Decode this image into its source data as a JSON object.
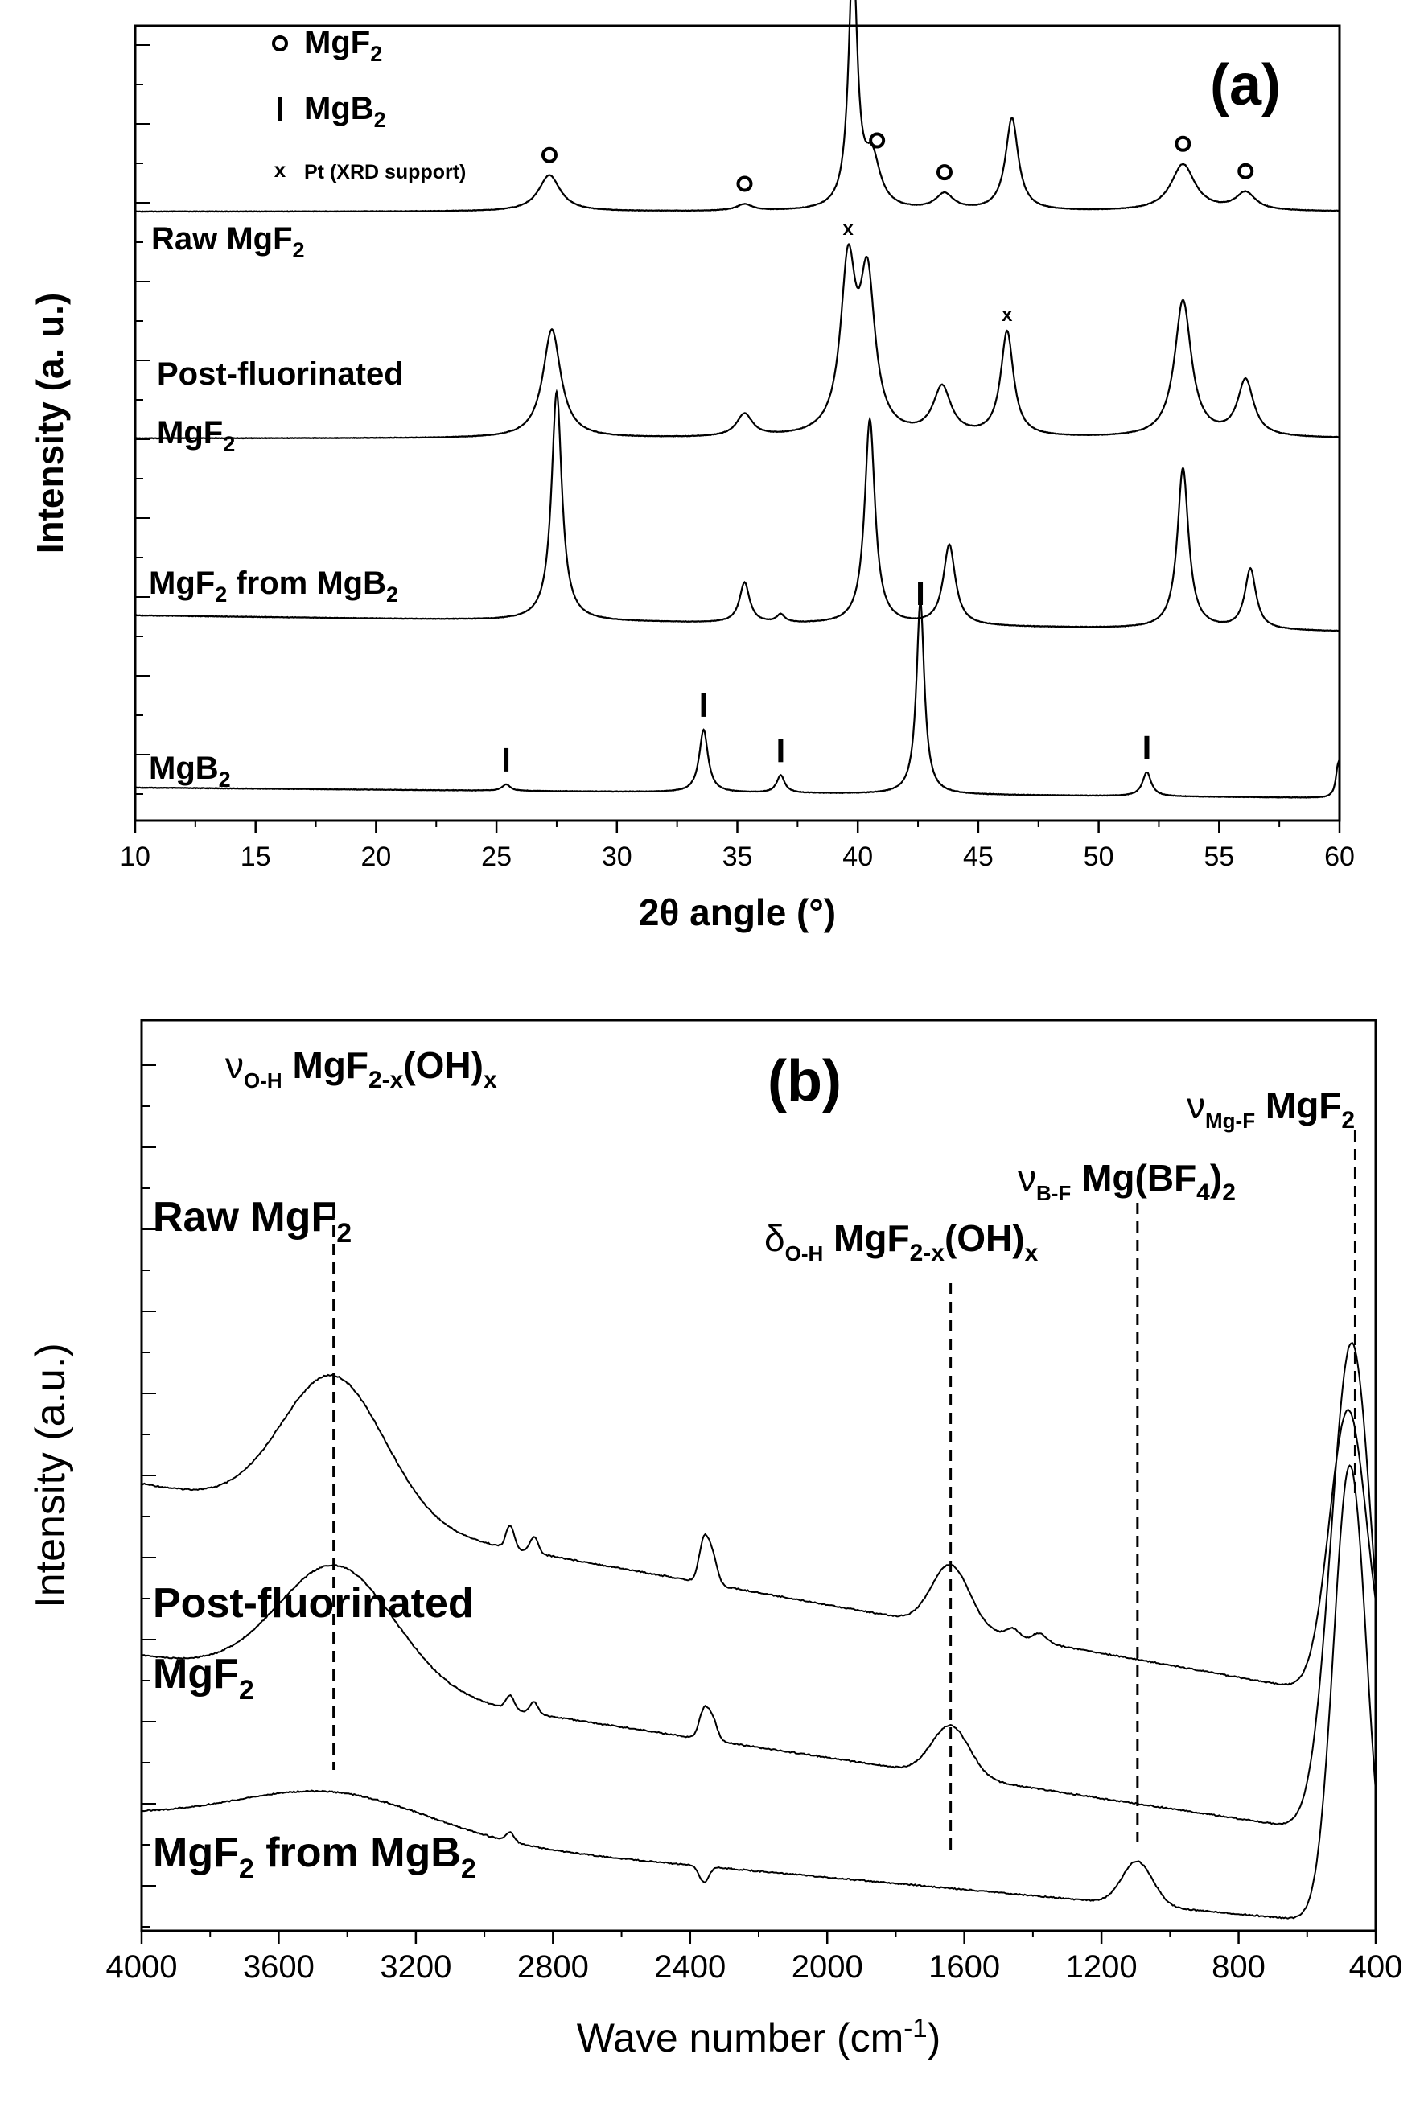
{
  "figure": {
    "panel_a_label": "(a)",
    "panel_b_label": "(b)"
  },
  "chart_data": [
    {
      "type": "line",
      "panel": "(a)",
      "xlabel": "2θ angle (°)",
      "ylabel": "Intensity (a. u.)",
      "xlim": [
        10,
        60
      ],
      "x_ticks": [
        10,
        15,
        20,
        25,
        30,
        35,
        40,
        45,
        50,
        55,
        60
      ],
      "legend": [
        {
          "marker": "o",
          "label": "MgF",
          "sub": "2"
        },
        {
          "marker": "I",
          "label": "MgB",
          "sub": "2"
        },
        {
          "marker": "x",
          "label": "Pt (XRD support)",
          "sub": ""
        }
      ],
      "series": [
        {
          "name": "Raw MgF2",
          "label_main": "Raw MgF",
          "label_sub": "2",
          "baseline": 70,
          "noise": 0.6,
          "slope": 0,
          "peaks": [
            [
              27.2,
              45,
              0.55
            ],
            [
              35.3,
              8,
              0.4
            ],
            [
              39.8,
              310,
              0.22
            ],
            [
              40.6,
              60,
              0.4
            ],
            [
              43.6,
              20,
              0.45
            ],
            [
              46.4,
              115,
              0.32
            ],
            [
              53.5,
              58,
              0.6
            ],
            [
              56.1,
              22,
              0.5
            ]
          ]
        },
        {
          "name": "Post-fluorinated MgF2",
          "label_main": "Post-fluorinated",
          "label_line2": "MgF",
          "label_sub": "2",
          "baseline": 45,
          "noise": 0.6,
          "slope": 0,
          "peaks": [
            [
              27.3,
              135,
              0.45
            ],
            [
              35.3,
              28,
              0.4
            ],
            [
              39.6,
              205,
              0.38
            ],
            [
              40.4,
              185,
              0.38
            ],
            [
              43.5,
              60,
              0.45
            ],
            [
              46.2,
              130,
              0.32
            ],
            [
              53.5,
              170,
              0.42
            ],
            [
              56.1,
              70,
              0.4
            ]
          ]
        },
        {
          "name": "MgF2 from MgB2",
          "label_main": "MgF",
          "label_sub": "2",
          "label_tail": " from MgB",
          "label_tail_sub": "2",
          "baseline": 32,
          "noise": 0.6,
          "slope": 2,
          "peaks": [
            [
              27.5,
              285,
              0.26
            ],
            [
              35.3,
              50,
              0.25
            ],
            [
              36.8,
              10,
              0.2
            ],
            [
              40.5,
              255,
              0.26
            ],
            [
              43.8,
              100,
              0.3
            ],
            [
              53.5,
              200,
              0.28
            ],
            [
              56.3,
              75,
              0.28
            ]
          ]
        },
        {
          "name": "MgB2",
          "label_main": "MgB",
          "label_sub": "2",
          "baseline": 8,
          "noise": 0.6,
          "slope": 1.3,
          "peaks": [
            [
              25.4,
              8,
              0.2
            ],
            [
              33.6,
              78,
              0.22
            ],
            [
              36.8,
              22,
              0.2
            ],
            [
              42.6,
              240,
              0.2
            ],
            [
              52.0,
              30,
              0.22
            ],
            [
              59.95,
              44,
              0.12
            ]
          ]
        }
      ],
      "annotations": [
        {
          "series": 0,
          "x": 27.2,
          "symbol": "o"
        },
        {
          "series": 0,
          "x": 35.3,
          "symbol": "o"
        },
        {
          "series": 0,
          "x": 40.8,
          "symbol": "o"
        },
        {
          "series": 0,
          "x": 43.6,
          "symbol": "o"
        },
        {
          "series": 0,
          "x": 53.5,
          "symbol": "o"
        },
        {
          "series": 0,
          "x": 56.1,
          "symbol": "o"
        },
        {
          "series": 1,
          "x": 39.6,
          "symbol": "x"
        },
        {
          "series": 1,
          "x": 46.2,
          "symbol": "x"
        },
        {
          "series": 2,
          "x": 42.6,
          "symbol": "I"
        },
        {
          "series": 3,
          "x": 25.4,
          "symbol": "I"
        },
        {
          "series": 3,
          "x": 33.6,
          "symbol": "I"
        },
        {
          "series": 3,
          "x": 36.8,
          "symbol": "I"
        },
        {
          "series": 3,
          "x": 52.0,
          "symbol": "I"
        }
      ]
    },
    {
      "type": "line",
      "panel": "(b)",
      "xlabel": "Wave number (cm",
      "xlabel_sup": "-1",
      "xlabel_tail": ")",
      "ylabel": "Intensity (a.u.)",
      "xlim": [
        4000,
        400
      ],
      "x_ticks": [
        4000,
        3600,
        3200,
        2800,
        2400,
        2000,
        1600,
        1200,
        800,
        400
      ],
      "series": [
        {
          "name": "Raw MgF2",
          "label_main": "Raw MgF",
          "label_sub": "2",
          "baseline": 1.55,
          "slope_start": 0.4,
          "slope_end": -0.55,
          "bands": [
            [
              3440,
              0.62,
              150
            ],
            [
              2925,
              0.1,
              12
            ],
            [
              2855,
              0.07,
              12
            ],
            [
              2360,
              0.18,
              14
            ],
            [
              2335,
              0.12,
              14
            ],
            [
              1640,
              0.27,
              55
            ],
            [
              1460,
              0.04,
              20
            ],
            [
              1380,
              0.04,
              20
            ],
            [
              480,
              1.25,
              55
            ]
          ]
        },
        {
          "name": "Post-fluorinated MgF2",
          "label_main": "Post-fluorinated",
          "label_line2": "MgF",
          "label_sub": "2",
          "baseline": 0.85,
          "slope_start": 0.35,
          "slope_end": -0.45,
          "bands": [
            [
              3430,
              0.52,
              170
            ],
            [
              2925,
              0.06,
              12
            ],
            [
              2855,
              0.05,
              12
            ],
            [
              2360,
              0.12,
              14
            ],
            [
              2335,
              0.09,
              14
            ],
            [
              1640,
              0.22,
              55
            ],
            [
              470,
              2.15,
              60
            ]
          ]
        },
        {
          "name": "MgF2 from MgB2",
          "label_main": "MgF",
          "label_sub": "2",
          "label_tail": " from MgB",
          "label_tail_sub": "2",
          "baseline": 0.17,
          "slope_start": 0.33,
          "slope_end": -0.15,
          "bands": [
            [
              3440,
              0.18,
              280
            ],
            [
              2925,
              0.04,
              12
            ],
            [
              2360,
              -0.07,
              14
            ],
            [
              1095,
              0.19,
              45
            ],
            [
              475,
              2.0,
              48
            ]
          ]
        }
      ],
      "annotations": [
        {
          "x": 3440,
          "label": "ν",
          "sub": "O-H",
          "text": " MgF",
          "text_sub": "2-x",
          "text_tail": "(OH)",
          "tail_sub": "x"
        },
        {
          "x": 1640,
          "label": "δ",
          "sub": "O-H",
          "text": " MgF",
          "text_sub": "2-x",
          "text_tail": "(OH)",
          "tail_sub": "x"
        },
        {
          "x": 1095,
          "label": "ν",
          "sub": "B-F",
          "text": " Mg(BF",
          "text_sub": "4",
          "text_tail": ")",
          "tail_sub": "2"
        },
        {
          "x": 460,
          "label": "ν",
          "sub": "Mg-F",
          "text": " MgF",
          "text_sub": "2",
          "text_tail": "",
          "tail_sub": ""
        }
      ]
    }
  ]
}
